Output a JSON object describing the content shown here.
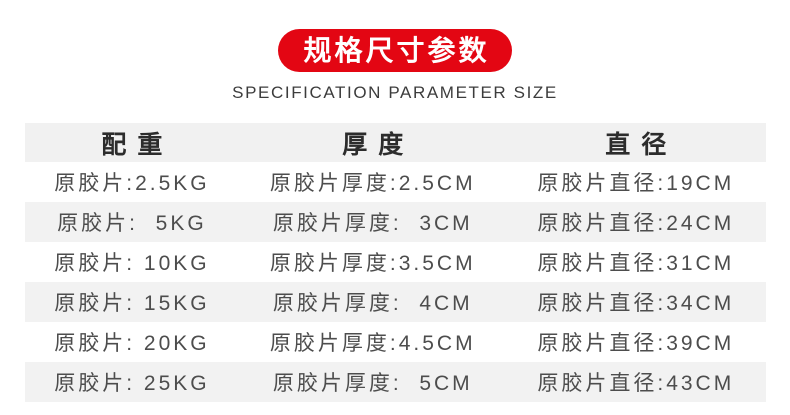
{
  "header": {
    "badge_title": "规格尺寸参数",
    "subtitle": "SPECIFICATION PARAMETER SIZE"
  },
  "colors": {
    "badge_red": "#e30613",
    "header_row_gray": "#f1f1f1",
    "stripe_gray": "#f2f2f2",
    "header_text": "#2c2c2c",
    "row_text": "#4d4d4d"
  },
  "table": {
    "headers": [
      "配重",
      "厚度",
      "直径"
    ],
    "rows": [
      [
        "原胶片:2.5KG",
        "原胶片厚度:2.5CM",
        "原胶片直径:19CM"
      ],
      [
        "原胶片:  5KG",
        "原胶片厚度:  3CM",
        "原胶片直径:24CM"
      ],
      [
        "原胶片: 10KG",
        "原胶片厚度:3.5CM",
        "原胶片直径:31CM"
      ],
      [
        "原胶片: 15KG",
        "原胶片厚度:  4CM",
        "原胶片直径:34CM"
      ],
      [
        "原胶片: 20KG",
        "原胶片厚度:4.5CM",
        "原胶片直径:39CM"
      ],
      [
        "原胶片: 25KG",
        "原胶片厚度:  5CM",
        "原胶片直径:43CM"
      ]
    ]
  }
}
